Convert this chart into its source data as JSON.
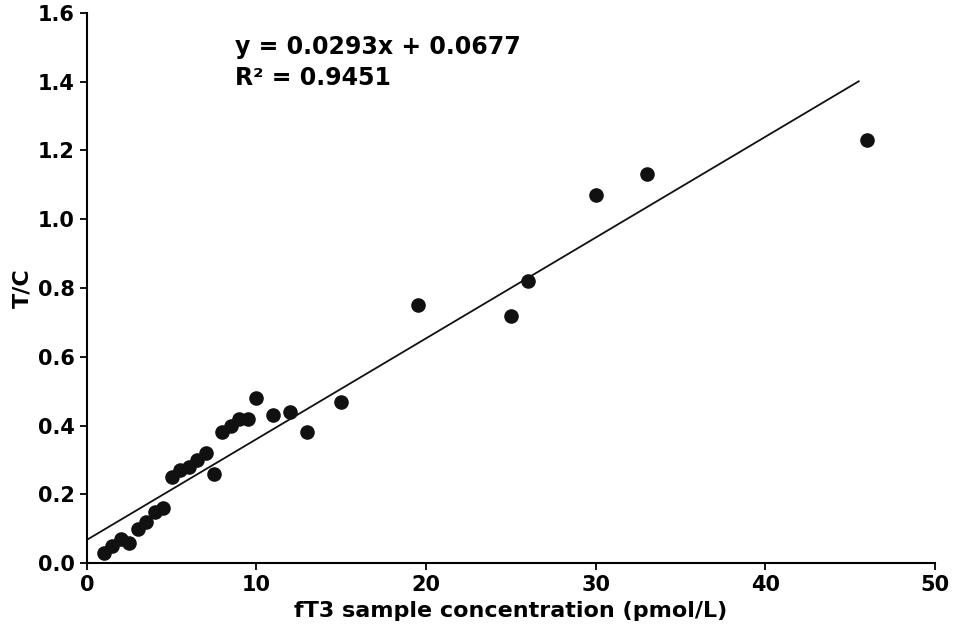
{
  "scatter_x": [
    1.0,
    1.5,
    2.0,
    2.5,
    3.0,
    3.5,
    4.0,
    4.5,
    5.0,
    5.5,
    6.0,
    6.5,
    7.0,
    7.5,
    8.0,
    8.5,
    9.0,
    9.5,
    10.0,
    11.0,
    12.0,
    13.0,
    15.0,
    19.5,
    25.0,
    26.0,
    30.0,
    33.0,
    46.0
  ],
  "scatter_y": [
    0.03,
    0.05,
    0.07,
    0.06,
    0.1,
    0.12,
    0.15,
    0.16,
    0.25,
    0.27,
    0.28,
    0.3,
    0.32,
    0.26,
    0.38,
    0.4,
    0.42,
    0.42,
    0.48,
    0.43,
    0.44,
    0.38,
    0.47,
    0.75,
    0.72,
    0.82,
    1.07,
    1.13,
    1.23
  ],
  "slope": 0.0293,
  "intercept": 0.0677,
  "r_squared": 0.9451,
  "equation_text": "y = 0.0293x + 0.0677",
  "r2_text": "R² = 0.9451",
  "xlabel": "fT3 sample concentration (pmol/L)",
  "ylabel": "T/C",
  "xlim": [
    0,
    50
  ],
  "ylim": [
    0,
    1.6
  ],
  "xticks": [
    0,
    10,
    20,
    30,
    40,
    50
  ],
  "yticks": [
    0,
    0.2,
    0.4,
    0.6,
    0.8,
    1.0,
    1.2,
    1.4,
    1.6
  ],
  "dot_color": "#111111",
  "line_color": "#111111",
  "background_color": "#ffffff",
  "dot_size": 90,
  "line_x_end": 45.5,
  "font_size_ticks": 15,
  "font_size_labels": 16,
  "font_size_annotation": 17
}
